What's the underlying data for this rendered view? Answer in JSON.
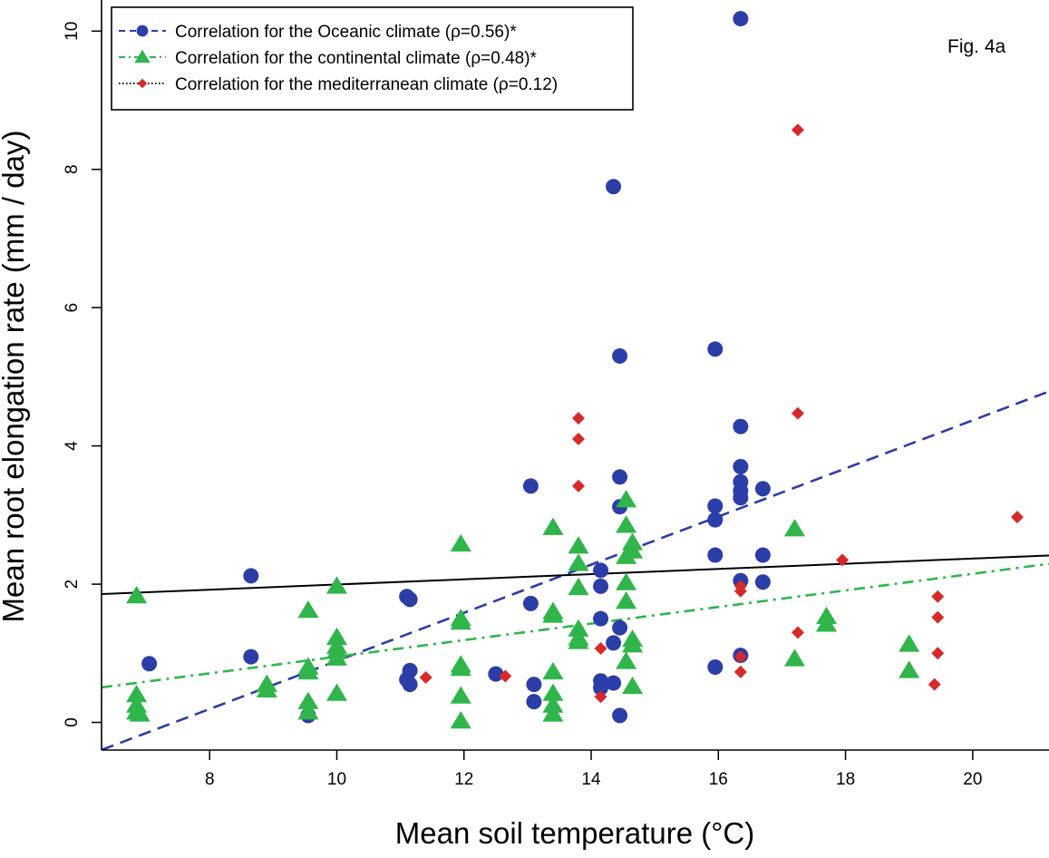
{
  "chart_data": {
    "type": "scatter",
    "xlabel": "Mean soil temperature (°C)",
    "ylabel": "Mean root elongation rate (mm / day)",
    "xlim": [
      6.3,
      21.2
    ],
    "ylim": [
      -0.4,
      10.45
    ],
    "xticks": [
      8,
      10,
      12,
      14,
      16,
      18,
      20
    ],
    "yticks": [
      0,
      2,
      4,
      6,
      8,
      10
    ],
    "xtick_labels": [
      "8",
      "10",
      "12",
      "14",
      "16",
      "18",
      "20"
    ],
    "ytick_labels": [
      "0",
      "2",
      "4",
      "6",
      "8",
      "10"
    ],
    "grid": false,
    "legend_position": "top-left",
    "annotation": "Fig. 4a",
    "series": [
      {
        "name": "Correlation for the Oceanic climate (ρ=0.56)*",
        "marker": "circle",
        "color": "#2b3da6",
        "line_style": "dashed",
        "fit": {
          "slope": 0.348,
          "intercept": -2.59
        },
        "points": [
          [
            7.05,
            0.85
          ],
          [
            8.65,
            2.12
          ],
          [
            8.65,
            0.95
          ],
          [
            9.55,
            0.1
          ],
          [
            11.1,
            1.82
          ],
          [
            11.15,
            1.78
          ],
          [
            11.15,
            0.75
          ],
          [
            11.1,
            0.62
          ],
          [
            11.15,
            0.55
          ],
          [
            12.5,
            0.7
          ],
          [
            13.05,
            3.42
          ],
          [
            13.05,
            1.72
          ],
          [
            13.1,
            0.55
          ],
          [
            13.1,
            0.3
          ],
          [
            14.15,
            2.2
          ],
          [
            14.15,
            1.97
          ],
          [
            14.15,
            1.5
          ],
          [
            14.15,
            0.6
          ],
          [
            14.15,
            0.5
          ],
          [
            14.35,
            7.75
          ],
          [
            14.35,
            1.15
          ],
          [
            14.35,
            0.57
          ],
          [
            14.45,
            5.3
          ],
          [
            14.45,
            3.55
          ],
          [
            14.45,
            3.12
          ],
          [
            14.45,
            1.37
          ],
          [
            14.45,
            0.1
          ],
          [
            15.95,
            5.4
          ],
          [
            15.95,
            3.13
          ],
          [
            15.95,
            2.93
          ],
          [
            15.95,
            2.42
          ],
          [
            15.95,
            0.8
          ],
          [
            16.35,
            10.18
          ],
          [
            16.35,
            4.28
          ],
          [
            16.35,
            3.7
          ],
          [
            16.35,
            3.48
          ],
          [
            16.35,
            3.35
          ],
          [
            16.35,
            3.25
          ],
          [
            16.35,
            2.05
          ],
          [
            16.35,
            0.97
          ],
          [
            16.7,
            3.38
          ],
          [
            16.7,
            2.42
          ],
          [
            16.7,
            2.03
          ]
        ]
      },
      {
        "name": "Correlation for the continental climate (ρ=0.48)*",
        "marker": "triangle",
        "color": "#2fb54a",
        "line_style": "dashdot",
        "fit": {
          "slope": 0.12,
          "intercept": -0.25
        },
        "points": [
          [
            6.85,
            1.83
          ],
          [
            6.85,
            0.4
          ],
          [
            6.85,
            0.25
          ],
          [
            6.85,
            0.15
          ],
          [
            6.9,
            0.12
          ],
          [
            8.9,
            0.55
          ],
          [
            8.9,
            0.47
          ],
          [
            9.55,
            1.62
          ],
          [
            9.55,
            0.8
          ],
          [
            9.55,
            0.73
          ],
          [
            9.55,
            0.3
          ],
          [
            9.55,
            0.15
          ],
          [
            10.0,
            1.97
          ],
          [
            10.0,
            1.23
          ],
          [
            10.0,
            1.1
          ],
          [
            10.0,
            1.03
          ],
          [
            10.0,
            0.93
          ],
          [
            10.0,
            0.42
          ],
          [
            11.95,
            2.58
          ],
          [
            11.95,
            1.5
          ],
          [
            11.95,
            1.45
          ],
          [
            11.95,
            0.83
          ],
          [
            11.95,
            0.78
          ],
          [
            11.95,
            0.38
          ],
          [
            11.95,
            0.02
          ],
          [
            13.4,
            2.82
          ],
          [
            13.4,
            1.6
          ],
          [
            13.4,
            1.55
          ],
          [
            13.4,
            0.73
          ],
          [
            13.4,
            0.42
          ],
          [
            13.4,
            0.25
          ],
          [
            13.4,
            0.12
          ],
          [
            13.8,
            2.55
          ],
          [
            13.8,
            2.3
          ],
          [
            13.8,
            1.95
          ],
          [
            13.8,
            1.35
          ],
          [
            13.8,
            1.22
          ],
          [
            13.8,
            1.17
          ],
          [
            14.55,
            3.22
          ],
          [
            14.55,
            2.85
          ],
          [
            14.55,
            2.4
          ],
          [
            14.55,
            2.02
          ],
          [
            14.55,
            1.75
          ],
          [
            14.55,
            0.88
          ],
          [
            14.65,
            2.6
          ],
          [
            14.65,
            2.48
          ],
          [
            14.65,
            1.2
          ],
          [
            14.65,
            1.12
          ],
          [
            14.65,
            0.52
          ],
          [
            17.2,
            2.8
          ],
          [
            17.2,
            0.92
          ],
          [
            17.7,
            1.53
          ],
          [
            17.7,
            1.42
          ],
          [
            19.0,
            1.13
          ],
          [
            19.0,
            0.75
          ]
        ]
      },
      {
        "name": "Correlation for the mediterranean climate (ρ=0.12)",
        "marker": "diamond",
        "color": "#d62a2a",
        "line_style": "dotted",
        "fit": {
          "slope": 0.0375,
          "intercept": 1.62
        },
        "points": [
          [
            11.4,
            0.65
          ],
          [
            12.65,
            0.67
          ],
          [
            13.8,
            4.4
          ],
          [
            13.8,
            4.1
          ],
          [
            13.8,
            3.42
          ],
          [
            14.15,
            1.07
          ],
          [
            14.15,
            0.37
          ],
          [
            16.35,
            1.97
          ],
          [
            16.35,
            1.9
          ],
          [
            16.35,
            0.95
          ],
          [
            16.35,
            0.73
          ],
          [
            17.25,
            8.57
          ],
          [
            17.25,
            4.47
          ],
          [
            17.25,
            1.3
          ],
          [
            17.95,
            2.35
          ],
          [
            19.45,
            1.82
          ],
          [
            19.45,
            1.52
          ],
          [
            19.45,
            1.0
          ],
          [
            19.4,
            0.55
          ],
          [
            20.7,
            2.97
          ]
        ]
      }
    ]
  }
}
